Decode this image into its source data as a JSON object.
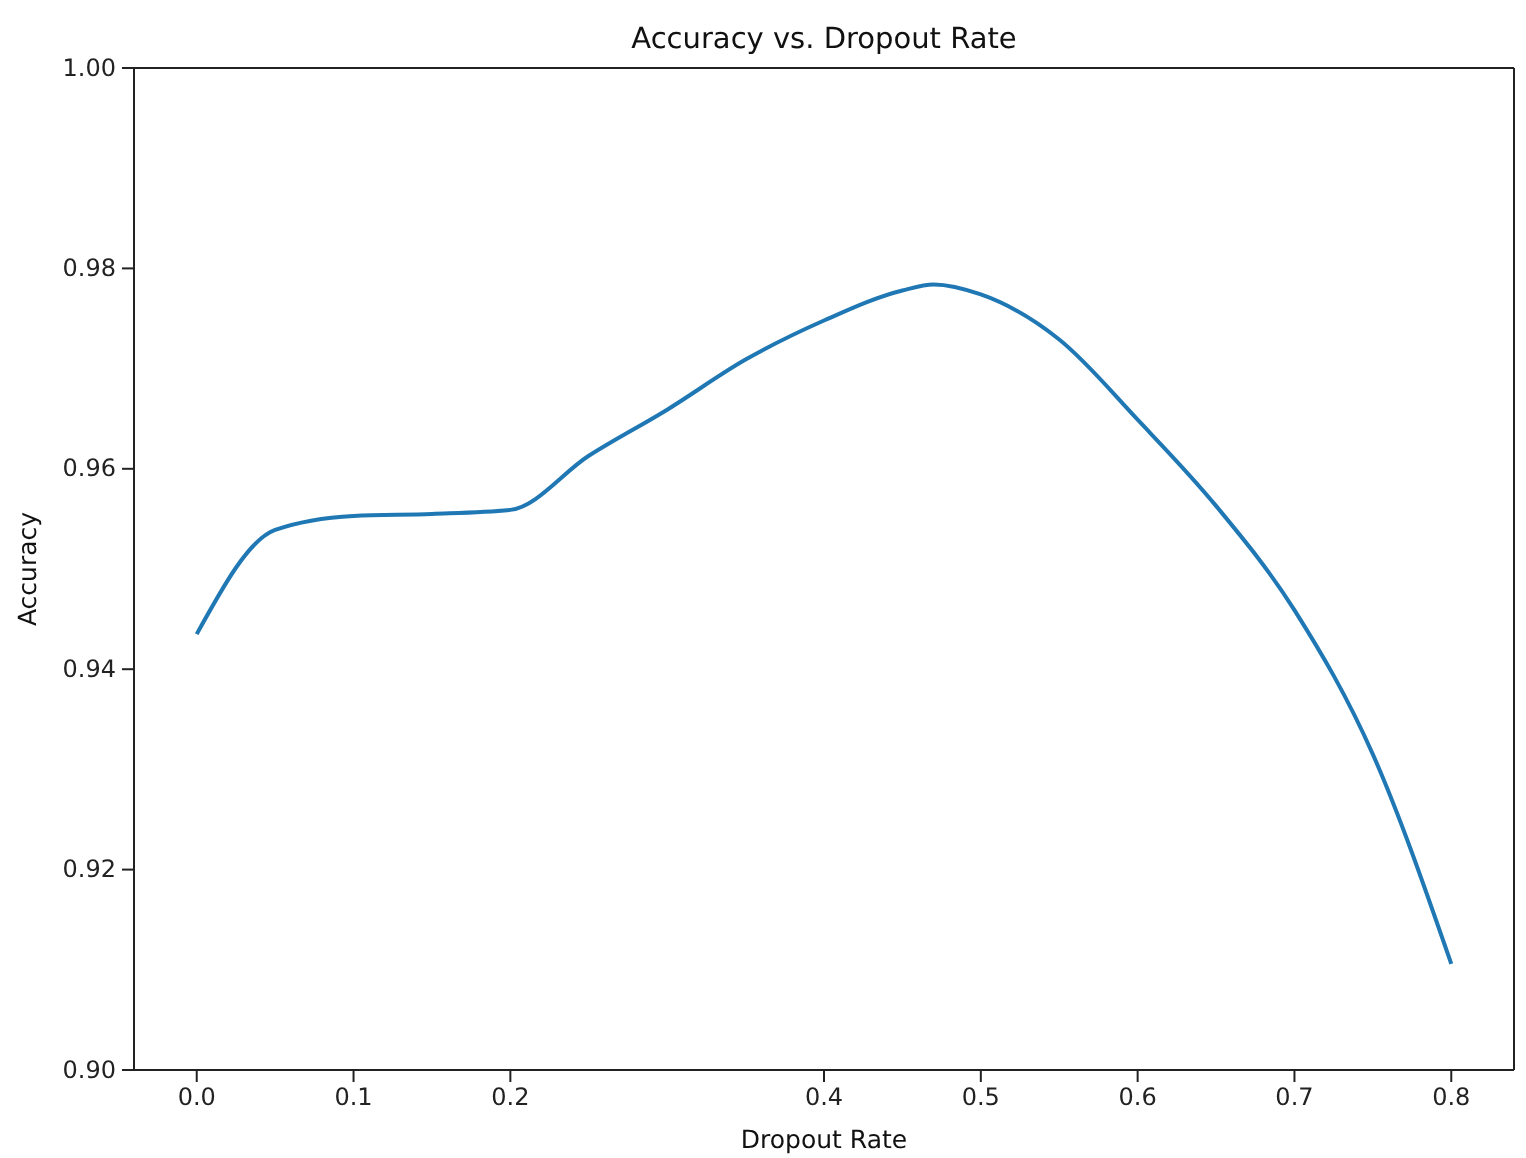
{
  "chart_data": {
    "type": "line",
    "title": "Accuracy vs. Dropout Rate",
    "xlabel": "Dropout Rate",
    "ylabel": "Accuracy",
    "x": [
      0,
      0.05,
      0.1,
      0.15,
      0.2,
      0.25,
      0.3,
      0.35,
      0.4,
      0.45,
      0.47,
      0.5,
      0.55,
      0.6,
      0.65,
      0.7,
      0.75,
      0.8
    ],
    "series": [
      {
        "color": "#1f77b4",
        "values": [
          0.9435,
          0.9539,
          0.9553,
          0.9555,
          0.9559,
          0.9613,
          0.9659,
          0.9709,
          0.9748,
          0.9778,
          0.9784,
          0.9774,
          0.9729,
          0.9649,
          0.9563,
          0.9459,
          0.9315,
          0.9106
        ]
      }
    ],
    "xlim": [
      -0.04,
      0.84
    ],
    "xticks": [
      {
        "value": 0,
        "label": "0.0"
      },
      0.1,
      0.2,
      0.4,
      0.5,
      0.6,
      0.7,
      0.8
    ],
    "ylim": [
      0.9,
      1.0
    ],
    "yticks": [
      {
        "value": 0.9,
        "label": "0.90"
      },
      {
        "value": 0.92,
        "label": "0.92"
      },
      {
        "value": 0.94,
        "label": "0.94"
      },
      {
        "value": 0.96,
        "label": "0.96"
      },
      {
        "value": 0.98,
        "label": "0.98"
      },
      {
        "value": 1.0,
        "label": "1.00"
      }
    ],
    "grid": false,
    "marker": "none",
    "line_style": "solid"
  }
}
